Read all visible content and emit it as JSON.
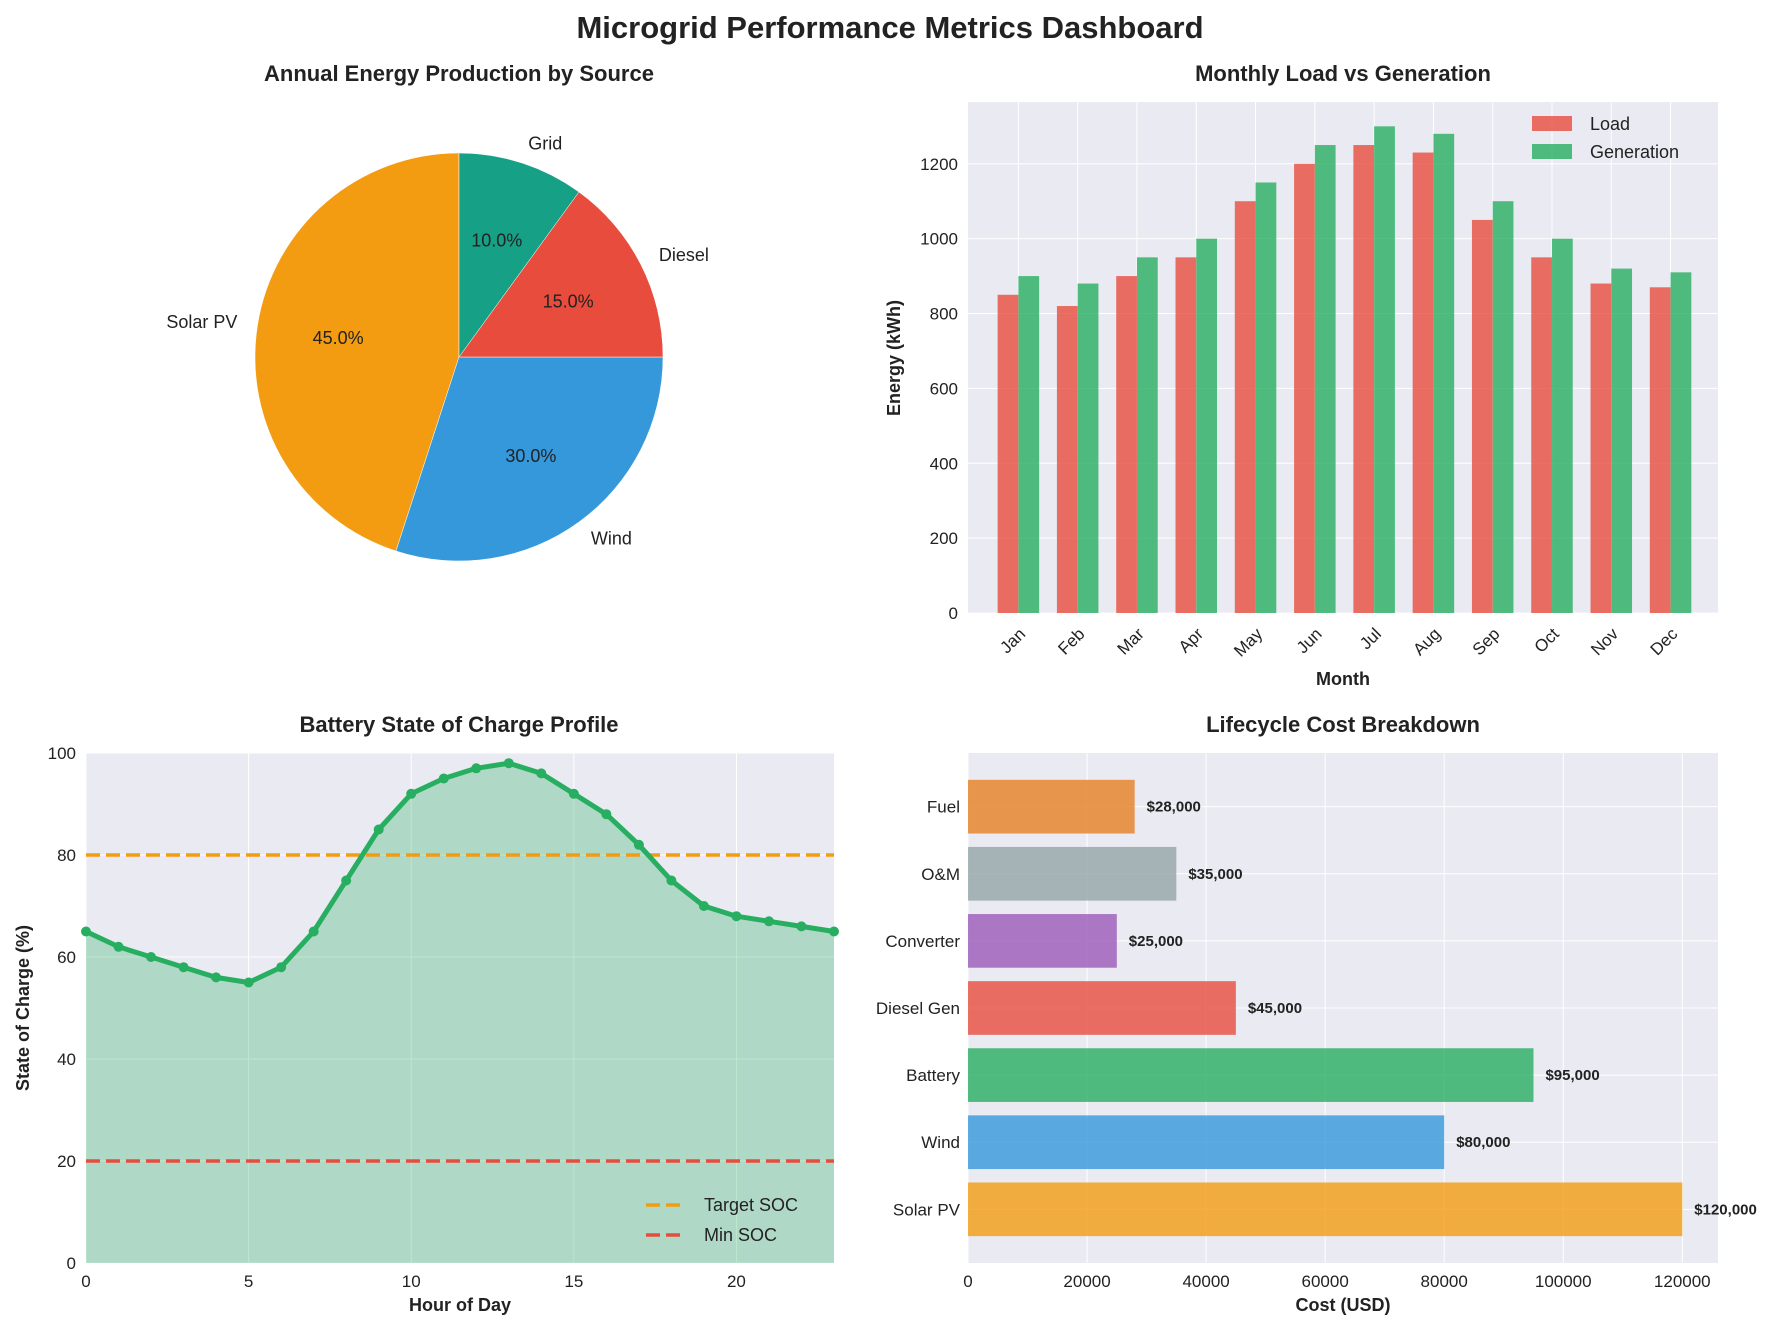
{
  "title": "Microgrid Performance Metrics Dashboard",
  "colors": {
    "solar": "#f39c12",
    "wind": "#3498db",
    "diesel": "#e74c3c",
    "grid": "#16a085",
    "green": "#27ae60",
    "purple": "#9b59b6",
    "gray": "#95a5a6",
    "orange": "#e67e22",
    "panel_bg": "#eaeaf2"
  },
  "chart_data": [
    {
      "id": "pie",
      "type": "pie",
      "title": "Annual Energy Production by Source",
      "labels": [
        "Solar PV",
        "Wind",
        "Diesel",
        "Grid"
      ],
      "values": [
        45,
        30,
        15,
        10
      ],
      "pct_labels": [
        "45.0%",
        "30.0%",
        "15.0%",
        "10.0%"
      ],
      "colors": [
        "#f39c12",
        "#3498db",
        "#e74c3c",
        "#16a085"
      ],
      "start_angle_deg": 90
    },
    {
      "id": "load-gen",
      "type": "bar",
      "title": "Monthly Load vs Generation",
      "xlabel": "Month",
      "ylabel": "Energy (kWh)",
      "categories": [
        "Jan",
        "Feb",
        "Mar",
        "Apr",
        "May",
        "Jun",
        "Jul",
        "Aug",
        "Sep",
        "Oct",
        "Nov",
        "Dec"
      ],
      "series": [
        {
          "name": "Load",
          "color": "#e74c3c",
          "values": [
            850,
            820,
            900,
            950,
            1100,
            1200,
            1250,
            1230,
            1050,
            950,
            880,
            870
          ]
        },
        {
          "name": "Generation",
          "color": "#27ae60",
          "values": [
            900,
            880,
            950,
            1000,
            1150,
            1250,
            1300,
            1280,
            1100,
            1000,
            920,
            910
          ]
        }
      ],
      "ylim": [
        0,
        1365
      ],
      "yticks": [
        0,
        200,
        400,
        600,
        800,
        1000,
        1200
      ],
      "legend": "top-right",
      "grid": true
    },
    {
      "id": "soc",
      "type": "area",
      "title": "Battery State of Charge Profile",
      "xlabel": "Hour of Day",
      "ylabel": "State of Charge (%)",
      "x": [
        0,
        1,
        2,
        3,
        4,
        5,
        6,
        7,
        8,
        9,
        10,
        11,
        12,
        13,
        14,
        15,
        16,
        17,
        18,
        19,
        20,
        21,
        22,
        23
      ],
      "y": [
        65,
        62,
        60,
        58,
        56,
        55,
        58,
        65,
        75,
        85,
        92,
        95,
        97,
        98,
        96,
        92,
        88,
        82,
        75,
        70,
        68,
        67,
        66,
        65
      ],
      "xlim": [
        0,
        23
      ],
      "ylim": [
        0,
        100
      ],
      "xticks": [
        0,
        5,
        10,
        15,
        20
      ],
      "yticks": [
        0,
        20,
        40,
        60,
        80,
        100
      ],
      "line_color": "#27ae60",
      "reference_lines": [
        {
          "name": "Target SOC",
          "y": 80,
          "color": "#f39c12"
        },
        {
          "name": "Min SOC",
          "y": 20,
          "color": "#e74c3c"
        }
      ],
      "legend": "bottom-right",
      "grid": true
    },
    {
      "id": "lifecycle",
      "type": "bar",
      "orientation": "horizontal",
      "title": "Lifecycle Cost Breakdown",
      "xlabel": "Cost (USD)",
      "categories": [
        "Solar PV",
        "Wind",
        "Battery",
        "Diesel Gen",
        "Converter",
        "O&M",
        "Fuel"
      ],
      "values": [
        120000,
        80000,
        95000,
        45000,
        25000,
        35000,
        28000
      ],
      "value_labels": [
        "$120,000",
        "$80,000",
        "$95,000",
        "$45,000",
        "$25,000",
        "$35,000",
        "$28,000"
      ],
      "colors": [
        "#f39c12",
        "#3498db",
        "#27ae60",
        "#e74c3c",
        "#9b59b6",
        "#95a5a6",
        "#e67e22"
      ],
      "xlim": [
        0,
        126000
      ],
      "xticks": [
        0,
        20000,
        40000,
        60000,
        80000,
        100000,
        120000
      ],
      "grid": true
    }
  ]
}
